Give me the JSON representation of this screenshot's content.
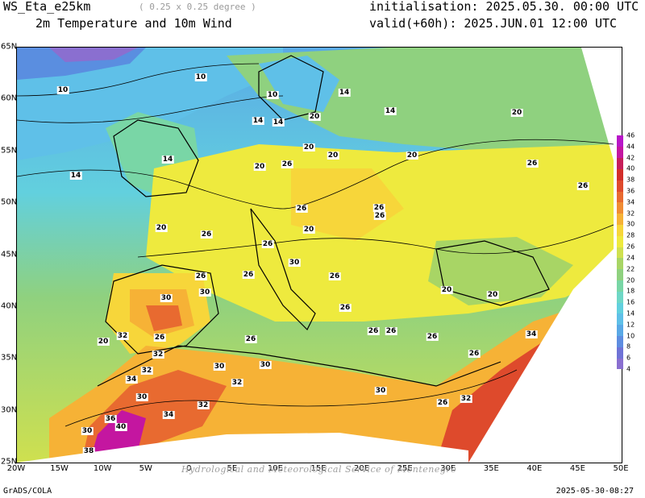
{
  "header": {
    "model": "WS_Eta_e25km",
    "resolution": "( 0.25 x 0.25 degree )",
    "field": "2m Temperature and 10m Wind",
    "init": "initialisation: 2025.05.30. 00:00 UTC",
    "valid": "valid(+60h): 2025.JUN.01 12:00 UTC"
  },
  "footer": {
    "left": "GrADS/COLA",
    "right": "2025-05-30-08:27",
    "watermark": "Hydrological and Meteorological Service of Montenegro"
  },
  "axes": {
    "lon_labels": [
      "20W",
      "15W",
      "10W",
      "5W",
      "0",
      "5E",
      "10E",
      "15E",
      "20E",
      "25E",
      "30E",
      "35E",
      "40E",
      "45E",
      "50E"
    ],
    "lat_labels": [
      "65N",
      "60N",
      "55N",
      "50N",
      "45N",
      "40N",
      "35N",
      "30N",
      "25N"
    ]
  },
  "colorbar": {
    "levels": [
      "4",
      "6",
      "8",
      "10",
      "12",
      "14",
      "16",
      "18",
      "20",
      "22",
      "24",
      "26",
      "28",
      "30",
      "32",
      "34",
      "36",
      "38",
      "40",
      "42",
      "44",
      "46"
    ],
    "colors": [
      "#8a6fd0",
      "#6f73d6",
      "#5e8de0",
      "#5aa9e6",
      "#5fc0e8",
      "#62d0de",
      "#6fd7c6",
      "#79d6a6",
      "#8fd17f",
      "#a8d565",
      "#cfe04f",
      "#eeea3e",
      "#f7d63a",
      "#f6b236",
      "#f08c34",
      "#e86a30",
      "#de4a2c",
      "#d22e2a",
      "#c61e5a",
      "#c416a0",
      "#b816c8"
    ]
  },
  "contour_labels": [
    {
      "v": "10"
    },
    {
      "v": "10"
    },
    {
      "v": "10"
    },
    {
      "v": "14"
    },
    {
      "v": "14"
    },
    {
      "v": "14"
    },
    {
      "v": "14"
    },
    {
      "v": "14"
    },
    {
      "v": "14"
    },
    {
      "v": "20"
    },
    {
      "v": "20"
    },
    {
      "v": "20"
    },
    {
      "v": "20"
    },
    {
      "v": "20"
    },
    {
      "v": "20"
    },
    {
      "v": "20"
    },
    {
      "v": "20"
    },
    {
      "v": "20"
    },
    {
      "v": "20"
    },
    {
      "v": "20"
    },
    {
      "v": "26"
    },
    {
      "v": "26"
    },
    {
      "v": "26"
    },
    {
      "v": "26"
    },
    {
      "v": "26"
    },
    {
      "v": "26"
    },
    {
      "v": "26"
    },
    {
      "v": "26"
    },
    {
      "v": "26"
    },
    {
      "v": "26"
    },
    {
      "v": "26"
    },
    {
      "v": "26"
    },
    {
      "v": "26"
    },
    {
      "v": "26"
    },
    {
      "v": "26"
    },
    {
      "v": "26"
    },
    {
      "v": "26"
    },
    {
      "v": "26"
    },
    {
      "v": "26"
    },
    {
      "v": "30"
    },
    {
      "v": "30"
    },
    {
      "v": "30"
    },
    {
      "v": "30"
    },
    {
      "v": "30"
    },
    {
      "v": "30"
    },
    {
      "v": "30"
    },
    {
      "v": "30"
    },
    {
      "v": "32"
    },
    {
      "v": "32"
    },
    {
      "v": "32"
    },
    {
      "v": "32"
    },
    {
      "v": "32"
    },
    {
      "v": "32"
    },
    {
      "v": "34"
    },
    {
      "v": "34"
    },
    {
      "v": "34"
    },
    {
      "v": "36"
    },
    {
      "v": "38"
    },
    {
      "v": "40"
    }
  ]
}
